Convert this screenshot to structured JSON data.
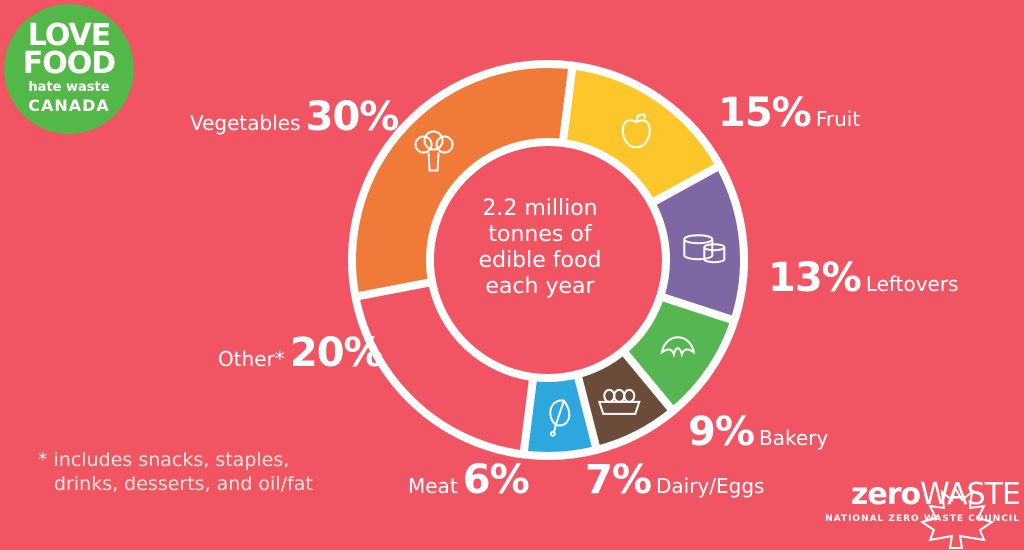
{
  "chart_data": {
    "type": "pie",
    "center_text": [
      "2.2 million",
      "tonnes of",
      "edible food",
      "each year"
    ],
    "slices": [
      {
        "category": "Vegetables",
        "label": "30%",
        "value": 30,
        "color": "#f07a38",
        "icon": "broccoli-icon"
      },
      {
        "category": "Fruit",
        "label": "15%",
        "value": 15,
        "color": "#fdc72b",
        "icon": "apple-icon"
      },
      {
        "category": "Leftovers",
        "label": "13%",
        "value": 13,
        "color": "#7f67a3",
        "icon": "food-container-icon"
      },
      {
        "category": "Bakery",
        "label": "9%",
        "value": 9,
        "color": "#56b752",
        "icon": "croissant-icon"
      },
      {
        "category": "Dairy/Eggs",
        "label": "7%",
        "value": 7,
        "color": "#6b4c3b",
        "icon": "egg-carton-icon"
      },
      {
        "category": "Meat",
        "label": "6%",
        "value": 6,
        "color": "#2ea7df",
        "icon": "drumstick-icon"
      },
      {
        "category": "Other*",
        "label": "20%",
        "value": 20,
        "color": "#f15462",
        "icon": ""
      }
    ],
    "footnote": [
      "* includes snacks, staples,",
      "drinks, desserts, and oil/fat"
    ]
  },
  "branding": {
    "love_food": [
      "LOVE",
      "FOOD"
    ],
    "hate_waste": "hate waste",
    "canada": "CANADA",
    "zero": "zero",
    "waste": "WASTE",
    "council": "NATIONAL ZERO WASTE COUNCIL"
  },
  "colors": {
    "background": "#f15462",
    "logo_green": "#53b848",
    "ring_stroke": "#ffffff"
  }
}
